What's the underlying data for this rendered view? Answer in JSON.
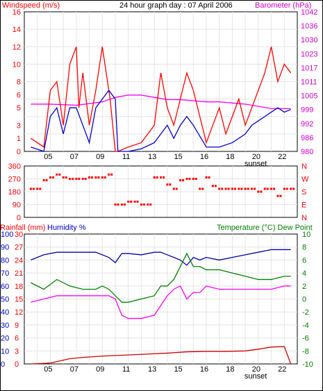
{
  "title": "24 hour graph day : 07 April 2006",
  "colors": {
    "wind": "#ff0000",
    "gust": "#ff0000",
    "avg_wind": "#0000cc",
    "barometer": "#ff00ff",
    "direction": "#ff0000",
    "rain": "#cc0000",
    "humidity": "#0000aa",
    "temperature": "#008000",
    "dew_point": "#ff00ff",
    "grid": "#cccccc",
    "axis_red": "#ff0000",
    "axis_magenta": "#cc00cc",
    "axis_green": "#008000",
    "axis_blue": "#0000cc",
    "axis_black": "#000000"
  },
  "chart_data": [
    {
      "type": "line",
      "name": "wind-panel",
      "left_label": "Windspeed (m/s)",
      "right_label": "Barometer (hPa)",
      "x_ticks": [
        "05",
        "07",
        "09",
        "11",
        "13",
        "15",
        "16",
        "18",
        "20",
        "22"
      ],
      "x_marker": "sunset",
      "ylim": [
        0,
        16
      ],
      "y_ticks": [
        "0",
        "1",
        "3",
        "5",
        "6",
        "8",
        "10",
        "12",
        "14",
        "16"
      ],
      "y2_ticks": [
        "980",
        "986",
        "992",
        "999",
        "1005",
        "1011",
        "1017",
        "1023",
        "1030",
        "1036",
        "1042"
      ],
      "y2lim": [
        980,
        1042
      ],
      "series": [
        {
          "name": "gust",
          "x": [
            3.5,
            4.5,
            5,
            5.5,
            6,
            6.5,
            7,
            7.2,
            7.5,
            8,
            8.5,
            9,
            9.3,
            9.6,
            10,
            10.2,
            11,
            12,
            12.5,
            13,
            13.5,
            14,
            14.5,
            15,
            15.5,
            16,
            17,
            17.5,
            18,
            18.5,
            19,
            19.5,
            20,
            20.5,
            21,
            21.5,
            22,
            22.5,
            23,
            23.5
          ],
          "values": [
            1.5,
            0.5,
            7,
            8,
            3,
            10,
            12,
            5,
            9,
            3,
            7,
            12,
            9,
            6,
            0,
            0,
            0.5,
            1,
            2,
            3,
            9,
            5,
            3,
            6,
            9,
            7,
            1,
            3,
            5,
            2,
            4,
            6,
            3,
            5,
            7,
            9,
            12,
            8,
            10,
            9
          ]
        },
        {
          "name": "avg_wind",
          "x": [
            3.5,
            4.5,
            5,
            5.5,
            6,
            6.5,
            7,
            7.5,
            8,
            8.5,
            9,
            9.5,
            10,
            10.2,
            11,
            12,
            13,
            13.5,
            14,
            14.5,
            15,
            15.5,
            16,
            17,
            18,
            19,
            20,
            20.5,
            21,
            21.5,
            22,
            22.5,
            23,
            23.5
          ],
          "values": [
            0.5,
            0,
            4,
            5,
            2,
            5,
            5,
            3,
            1,
            5,
            6,
            7,
            6,
            0,
            0,
            0.3,
            1,
            2,
            3,
            1.5,
            3,
            4,
            3,
            0.5,
            0.5,
            1,
            2,
            3,
            3.5,
            4,
            4.5,
            5,
            4.5,
            4.8
          ]
        },
        {
          "name": "barometer",
          "x": [
            3.5,
            5,
            7,
            9,
            10,
            11,
            12,
            13,
            14,
            15,
            16,
            17,
            18,
            19,
            20,
            21,
            22,
            23,
            23.5
          ],
          "values": [
            1001,
            1001,
            1000.5,
            1002,
            1004,
            1005,
            1005,
            1004,
            1003,
            1003,
            1002.5,
            1002,
            1002,
            1001.5,
            1001,
            1000,
            999,
            999,
            999
          ]
        }
      ]
    },
    {
      "type": "scatter",
      "name": "direction-panel",
      "left_ticks": [
        "360",
        "270",
        "180",
        "90",
        "0"
      ],
      "right_ticks": [
        "N",
        "W",
        "S",
        "E",
        "N"
      ],
      "ylim": [
        0,
        360
      ],
      "x_ticks": [
        "05",
        "07",
        "09",
        "11",
        "13",
        "15",
        "16",
        "18",
        "20",
        "22"
      ],
      "series": [
        {
          "name": "wind-direction",
          "x": [
            3.5,
            4,
            4.5,
            5,
            5.5,
            6,
            6.5,
            7,
            7.5,
            8,
            8.5,
            9,
            9.5,
            10,
            10.5,
            11,
            11.5,
            12,
            12.5,
            13,
            13.5,
            14,
            14.5,
            15,
            15.5,
            16,
            16.5,
            17,
            17.5,
            18,
            18.5,
            19,
            19.5,
            20,
            20.5,
            21,
            21.5,
            22,
            22.5,
            23,
            23.5
          ],
          "values": [
            200,
            200,
            260,
            280,
            300,
            280,
            270,
            270,
            270,
            280,
            280,
            280,
            300,
            90,
            90,
            110,
            110,
            90,
            90,
            280,
            280,
            230,
            200,
            260,
            270,
            270,
            200,
            280,
            220,
            200,
            200,
            200,
            200,
            200,
            200,
            180,
            200,
            200,
            150,
            200,
            200
          ]
        }
      ]
    },
    {
      "type": "line",
      "name": "weather-panel",
      "left_label_rain": "Rainfall (mm)",
      "left_label_humidity": "Humidity %",
      "right_label": "Temperature (°C) Dew Point",
      "x_ticks": [
        "05",
        "07",
        "09",
        "11",
        "13",
        "15",
        "16",
        "18",
        "20",
        "22"
      ],
      "x_marker": "sunset",
      "humidity_ticks": [
        "0",
        "10",
        "20",
        "30",
        "40",
        "50",
        "60",
        "70",
        "80",
        "90",
        "100"
      ],
      "rain_ticks": [
        "0",
        "3",
        "6",
        "9",
        "12",
        "15",
        "18",
        "21",
        "24",
        "27",
        "30"
      ],
      "temp_ticks": [
        "-10",
        "-8",
        "-6",
        "-4",
        "-2",
        "0",
        "2",
        "4",
        "6",
        "8",
        "10"
      ],
      "series": [
        {
          "name": "humidity",
          "x": [
            3.5,
            4.5,
            5.5,
            6.5,
            7.5,
            8.5,
            9.5,
            10,
            10.5,
            11,
            12,
            13,
            13.5,
            14,
            14.5,
            15,
            15.5,
            16,
            16.5,
            17,
            18,
            19,
            20,
            21,
            22,
            23,
            23.5
          ],
          "values": [
            80,
            84,
            86,
            86,
            86,
            86,
            82,
            78,
            85,
            85,
            84,
            86,
            86,
            84,
            82,
            80,
            76,
            82,
            80,
            82,
            80,
            82,
            84,
            86,
            88,
            88,
            88
          ]
        },
        {
          "name": "temperature",
          "x": [
            3.5,
            4.5,
            5.5,
            6.5,
            7.5,
            8.5,
            9,
            9.5,
            10,
            10.5,
            11,
            12,
            13,
            13.5,
            14,
            14.5,
            15,
            15.5,
            16,
            16.5,
            17,
            18,
            19,
            20,
            21,
            22,
            23,
            23.5
          ],
          "values": [
            2.5,
            1.5,
            3,
            2,
            1.5,
            1.5,
            2,
            1.5,
            0.5,
            -0.5,
            -0.5,
            0,
            0.5,
            2,
            2,
            3,
            5,
            7,
            5,
            5,
            4.5,
            4.5,
            4,
            3.5,
            3,
            3,
            3.5,
            3.5
          ]
        },
        {
          "name": "dew_point",
          "x": [
            3.5,
            4.5,
            5.5,
            6.5,
            7.5,
            8.5,
            9.5,
            10,
            10.5,
            11,
            12,
            13,
            13.5,
            14,
            14.5,
            15,
            15.5,
            16,
            16.5,
            17,
            18,
            19,
            20,
            21,
            22,
            23,
            23.5
          ],
          "values": [
            -0.5,
            0,
            0.5,
            0.5,
            0.5,
            0.5,
            0.5,
            0,
            -2.5,
            -3,
            -3,
            -2.5,
            -1,
            0.5,
            1.5,
            2,
            0,
            1,
            1,
            2,
            1.5,
            1.5,
            1.5,
            1.5,
            1.5,
            2,
            2
          ]
        },
        {
          "name": "rainfall",
          "x": [
            3.5,
            5,
            6.5,
            7.5,
            9,
            10.5,
            12,
            14,
            15.5,
            17,
            18.5,
            20,
            21,
            22,
            23,
            23.5
          ],
          "values": [
            0,
            0.2,
            1.2,
            1.5,
            1.8,
            2,
            2.2,
            2.5,
            2.8,
            2.9,
            2.9,
            3,
            3.4,
            3.9,
            4,
            0
          ]
        }
      ]
    }
  ]
}
